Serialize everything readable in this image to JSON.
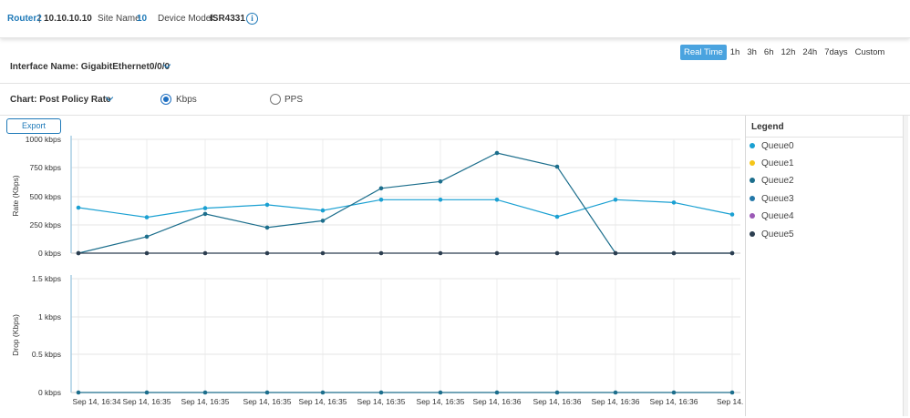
{
  "header": {
    "router_name": "Router2",
    "separator": "|",
    "ip": "10.10.10.10",
    "site_label": "Site Name",
    "site_value": "10",
    "model_label": "Device Model:",
    "model_value": "ISR4331",
    "info_icon": "i"
  },
  "interface": {
    "label": "Interface Name: GigabitEthernet0/0/0"
  },
  "time_ranges": [
    "Real Time",
    "1h",
    "3h",
    "6h",
    "12h",
    "24h",
    "7days",
    "Custom"
  ],
  "selected_time_range": "Real Time",
  "chart_selector": {
    "label": "Chart: Post Policy Rate",
    "options": [
      "Kbps",
      "PPS"
    ],
    "selected": "Kbps"
  },
  "export_label": "Export",
  "legend": {
    "title": "Legend",
    "items": [
      {
        "name": "Queue0",
        "color": "#1aa0d2"
      },
      {
        "name": "Queue1",
        "color": "#f5c518"
      },
      {
        "name": "Queue2",
        "color": "#1c6e8c"
      },
      {
        "name": "Queue3",
        "color": "#2478a8"
      },
      {
        "name": "Queue4",
        "color": "#9b59b6"
      },
      {
        "name": "Queue5",
        "color": "#2c3e50"
      }
    ]
  },
  "chart_data": [
    {
      "type": "line",
      "ylabel": "Rate (Kbps)",
      "ylim": [
        0,
        1000
      ],
      "yticks": [
        "0 kbps",
        "250 kbps",
        "500 kbps",
        "750 kbps",
        "1000 kbps"
      ],
      "x": [
        "Sep 14, 16:34",
        "Sep 14, 16:35",
        "Sep 14, 16:35",
        "Sep 14, 16:35",
        "Sep 14, 16:35",
        "Sep 14, 16:35",
        "Sep 14, 16:35",
        "Sep 14, 16:36",
        "Sep 14, 16:36",
        "Sep 14, 16:36",
        "Sep 14, 16:36",
        "Sep 14..."
      ],
      "series": [
        {
          "name": "Queue0",
          "color": "#1aa0d2",
          "values": [
            400,
            315,
            395,
            425,
            375,
            470,
            470,
            470,
            320,
            470,
            445,
            340
          ]
        },
        {
          "name": "Queue2",
          "color": "#1c6e8c",
          "values": [
            0,
            145,
            345,
            225,
            285,
            570,
            630,
            880,
            760,
            0,
            0,
            0
          ]
        },
        {
          "name": "Queue5",
          "color": "#2c3e50",
          "values": [
            0,
            0,
            0,
            0,
            0,
            0,
            0,
            0,
            0,
            0,
            0,
            0
          ]
        }
      ]
    },
    {
      "type": "line",
      "ylabel": "Drop (Kbps)",
      "ylim": [
        0,
        1.5
      ],
      "yticks": [
        "0 kbps",
        "0.5 kbps",
        "1 kbps",
        "1.5 kbps"
      ],
      "x": [
        "Sep 14, 16:34",
        "Sep 14, 16:35",
        "Sep 14, 16:35",
        "Sep 14, 16:35",
        "Sep 14, 16:35",
        "Sep 14, 16:35",
        "Sep 14, 16:35",
        "Sep 14, 16:36",
        "Sep 14, 16:36",
        "Sep 14, 16:36",
        "Sep 14, 16:36",
        "Sep 14..."
      ],
      "series": [
        {
          "name": "Queue2",
          "color": "#1c6e8c",
          "values": [
            0,
            0,
            0,
            0,
            0,
            0,
            0,
            0,
            0,
            0,
            0,
            0
          ]
        }
      ]
    }
  ]
}
